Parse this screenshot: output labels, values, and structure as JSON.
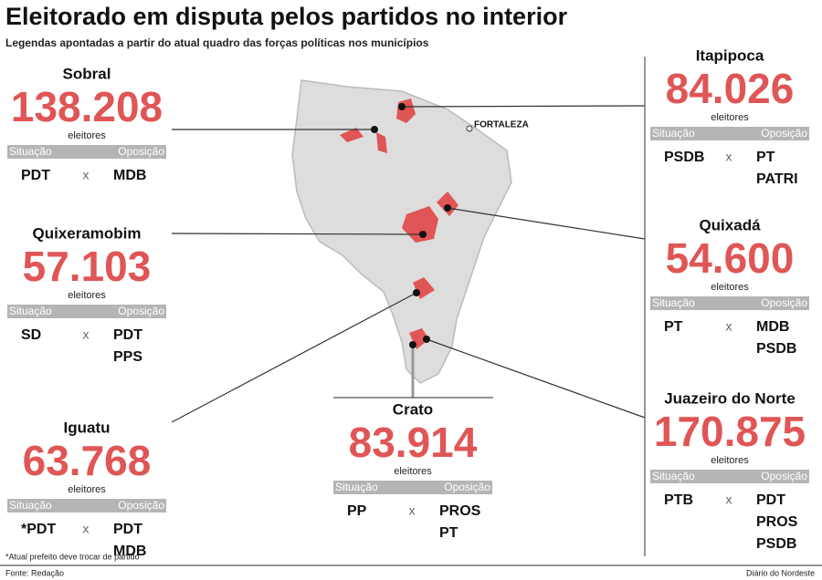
{
  "header": {
    "title": "Eleitorado em disputa pelos partidos no interior",
    "subtitle": "Legendas apontadas a partir do atual quadro das forças políticas nos municípios"
  },
  "labels": {
    "unit": "eleitores",
    "situacao": "Situação",
    "oposicao": "Oposição",
    "versus": "x"
  },
  "map_label": "FORTALEZA",
  "cities": [
    {
      "name": "Sobral",
      "voters": "138.208",
      "situacao": [
        "PDT"
      ],
      "oposicao": [
        "MDB"
      ]
    },
    {
      "name": "Quixeramobim",
      "voters": "57.103",
      "situacao": [
        "SD"
      ],
      "oposicao": [
        "PDT",
        "PPS"
      ]
    },
    {
      "name": "Iguatu",
      "voters": "63.768",
      "situacao": [
        "*PDT"
      ],
      "oposicao": [
        "PDT",
        "MDB"
      ]
    },
    {
      "name": "Crato",
      "voters": "83.914",
      "situacao": [
        "PP"
      ],
      "oposicao": [
        "PROS",
        "PT"
      ]
    },
    {
      "name": "Itapipoca",
      "voters": "84.026",
      "situacao": [
        "PSDB"
      ],
      "oposicao": [
        "PT",
        "PATRI"
      ]
    },
    {
      "name": "Quixadá",
      "voters": "54.600",
      "situacao": [
        "PT"
      ],
      "oposicao": [
        "MDB",
        "PSDB"
      ]
    },
    {
      "name": "Juazeiro do Norte",
      "voters": "170.875",
      "situacao": [
        "PTB"
      ],
      "oposicao": [
        "PDT",
        "PROS",
        "PSDB"
      ]
    }
  ],
  "footnote": "*Atual prefeito deve trocar de partido",
  "source": "Fonte: Redação",
  "credit": "Diário do Nordeste"
}
